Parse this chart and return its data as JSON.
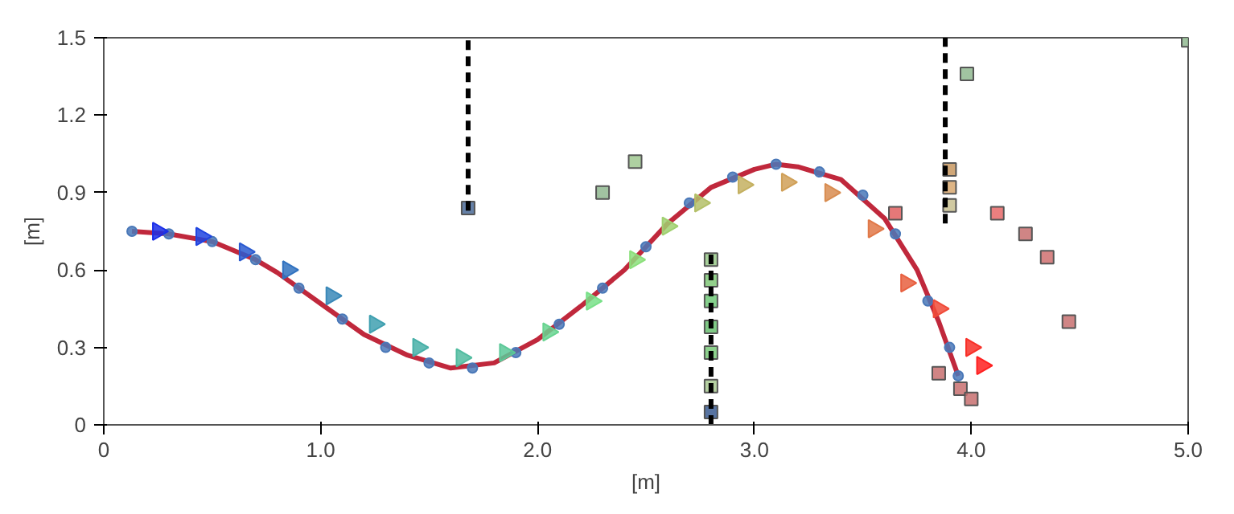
{
  "chart_data": {
    "type": "scatter",
    "xlabel": "[m]",
    "ylabel": "[m]",
    "xlim": [
      0,
      5
    ],
    "ylim": [
      0,
      1.5
    ],
    "xticks": [
      0,
      {
        "value": 1,
        "label": "1.0"
      },
      {
        "value": 2,
        "label": "2.0"
      },
      {
        "value": 3,
        "label": "3.0"
      },
      {
        "value": 4,
        "label": "4.0"
      },
      {
        "value": 5,
        "label": "5.0"
      }
    ],
    "yticks": [
      0,
      0.3,
      0.6,
      0.9,
      1.2,
      1.5
    ],
    "grid": false,
    "series": [
      {
        "type": "line",
        "color": "#c0283c",
        "line_style": "solid",
        "x": [
          0.13,
          0.3,
          0.5,
          0.7,
          0.8,
          1.0,
          1.2,
          1.4,
          1.6,
          1.8,
          2.0,
          2.2,
          2.4,
          2.6,
          2.8,
          3.0,
          3.1,
          3.2,
          3.4,
          3.6,
          3.75,
          3.85,
          3.94
        ],
        "values": [
          0.75,
          0.74,
          0.71,
          0.64,
          0.59,
          0.47,
          0.35,
          0.27,
          0.22,
          0.24,
          0.33,
          0.46,
          0.6,
          0.78,
          0.92,
          0.99,
          1.01,
          1.0,
          0.95,
          0.8,
          0.6,
          0.4,
          0.19
        ]
      },
      {
        "color": "#4a78b8",
        "marker": "circle",
        "x": [
          0.13,
          0.3,
          0.5,
          0.7,
          0.9,
          1.1,
          1.3,
          1.5,
          1.7,
          1.9,
          2.1,
          2.3,
          2.5,
          2.7,
          2.9,
          3.1,
          3.3,
          3.5,
          3.65,
          3.8,
          3.9,
          3.94
        ],
        "values": [
          0.75,
          0.74,
          0.71,
          0.64,
          0.53,
          0.41,
          0.3,
          0.24,
          0.22,
          0.28,
          0.39,
          0.53,
          0.69,
          0.86,
          0.96,
          1.01,
          0.98,
          0.89,
          0.74,
          0.48,
          0.3,
          0.19
        ]
      },
      {
        "marker": "triangle",
        "x": [
          0.25,
          0.45,
          0.65,
          0.85,
          1.05,
          1.25,
          1.45,
          1.65,
          1.85,
          2.05,
          2.25,
          2.45,
          2.6,
          2.75,
          2.95,
          3.15,
          3.35,
          3.55,
          3.7,
          3.85,
          4.0,
          4.05
        ],
        "values": [
          0.75,
          0.73,
          0.67,
          0.6,
          0.5,
          0.39,
          0.3,
          0.26,
          0.28,
          0.36,
          0.48,
          0.64,
          0.77,
          0.86,
          0.93,
          0.94,
          0.9,
          0.76,
          0.55,
          0.45,
          0.3,
          0.23
        ],
        "colors": [
          "#1a2ee8",
          "#1f44e0",
          "#2a5ad0",
          "#3072c0",
          "#3a88b8",
          "#40a0b0",
          "#48b0a8",
          "#52bca0",
          "#5cc898",
          "#68d490",
          "#78e088",
          "#8ce07c",
          "#a0d070",
          "#b4c068",
          "#c4b060",
          "#d0a058",
          "#d88c50",
          "#e07848",
          "#e86040",
          "#f04a38",
          "#f83028",
          "#ff2020"
        ]
      },
      {
        "marker": "square",
        "x": [
          2.8,
          2.8,
          2.8,
          2.8,
          2.8,
          2.8,
          2.8,
          3.9,
          3.9,
          3.9,
          3.65,
          4.12,
          4.25,
          4.35,
          4.45,
          3.85,
          3.95,
          4.0,
          2.3,
          2.45,
          3.98,
          5.0,
          1.68
        ],
        "values": [
          0.05,
          0.15,
          0.28,
          0.38,
          0.48,
          0.56,
          0.64,
          0.85,
          0.92,
          0.99,
          0.82,
          0.82,
          0.74,
          0.65,
          0.4,
          0.2,
          0.14,
          0.1,
          0.9,
          1.02,
          1.36,
          1.49,
          0.84
        ],
        "colors": [
          "#3a5a90",
          "#a8c890",
          "#78c878",
          "#68c070",
          "#70c878",
          "#80c878",
          "#98c888",
          "#c8c090",
          "#d8a870",
          "#c89860",
          "#e06060",
          "#e86868",
          "#c87070",
          "#d07070",
          "#c87070",
          "#c87070",
          "#c87070",
          "#c87070",
          "#90b890",
          "#a0c890",
          "#90b890",
          "#90b890",
          "#4a6a98"
        ]
      },
      {
        "type": "line",
        "color": "#000000",
        "line_style": "dashed",
        "x": [
          1.68,
          1.68
        ],
        "values": [
          0.83,
          1.5
        ]
      },
      {
        "type": "line",
        "color": "#000000",
        "line_style": "dashed",
        "x": [
          2.8,
          2.8
        ],
        "values": [
          0.0,
          0.66
        ]
      },
      {
        "type": "line",
        "color": "#000000",
        "line_style": "dashed",
        "x": [
          3.88,
          3.88
        ],
        "values": [
          0.78,
          1.5
        ]
      }
    ]
  }
}
